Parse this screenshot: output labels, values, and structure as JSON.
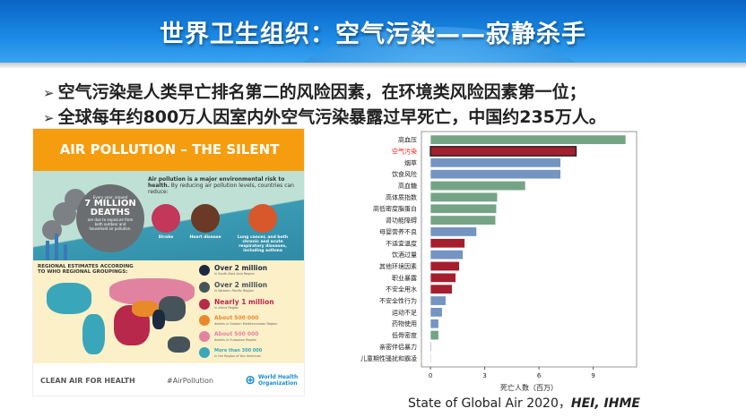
{
  "title": "世界卫生组织：空气污染——寂静杀手",
  "bullets": [
    "空气污染是人类早亡排名第二的风险因素，在环境类风险因素第一位；",
    "全球每年约800万人因室内外空气污染暴露过早死亡，中国约235万人。"
  ],
  "bullet_marker": "➢",
  "infographic": {
    "title": "AIR POLLUTION – THE SILENT KILLER",
    "circle_pre": "Every year, around",
    "circle_big1": "7 MILLION",
    "circle_big2": "DEATHS",
    "circle_post": "are due to exposure from both outdoor and household air pollution.",
    "intro_bold": "Air pollution is a major environmental risk to health.",
    "intro_rest": " By reducing air pollution levels, countries can reduce:",
    "organs": [
      "Stroke",
      "Heart disease",
      "Lung cancer, and both chronic and acute respiratory diseases, including asthma"
    ],
    "regional_title": "REGIONAL ESTIMATES ACCORDING TO WHO REGIONAL GROUPINGS:",
    "regions": [
      {
        "value": "Over 2 million",
        "sub": "in South-East Asia Region",
        "color": "#1c2a3e"
      },
      {
        "value": "Over 2 million",
        "sub": "in Western Pacific Region",
        "color": "#47535a"
      },
      {
        "value": "Nearly 1 million",
        "sub": "in Africa Region",
        "color": "#b8284a"
      },
      {
        "value": "About 500 000",
        "sub": "deaths in Eastern Mediterranean Region",
        "color": "#e98a2a"
      },
      {
        "value": "About 500 000",
        "sub": "deaths in European Region",
        "color": "#e183a0"
      },
      {
        "value": "More than 300 000",
        "sub": "in the Region of the Americas",
        "color": "#3aa6b9"
      }
    ],
    "footer_left": "CLEAN AIR FOR HEALTH",
    "footer_mid": "#AirPollution",
    "footer_logo": "World Health Organization"
  },
  "chart_data": {
    "type": "bar",
    "orientation": "horizontal",
    "categories": [
      "高血压",
      "空气污染",
      "烟草",
      "饮食风险",
      "高血糖",
      "高体质指数",
      "高低密度脂蛋白",
      "肾功能障碍",
      "母婴营养不良",
      "不适宜温度",
      "饮酒过量",
      "其他环境因素",
      "职业暴露",
      "不安全用水",
      "不安全性行为",
      "运动不足",
      "药物使用",
      "低骨密度",
      "亲密伴侣暴力",
      "儿童期性骚扰和霸凌"
    ],
    "values": [
      10.8,
      8.05,
      7.2,
      7.2,
      5.25,
      3.7,
      3.65,
      3.6,
      2.55,
      1.9,
      1.8,
      1.6,
      1.4,
      1.2,
      0.85,
      0.65,
      0.45,
      0.45,
      0.05,
      0.03
    ],
    "groups": [
      "metabolic",
      "environmental",
      "behavioral",
      "behavioral",
      "metabolic",
      "metabolic",
      "metabolic",
      "metabolic",
      "behavioral",
      "environmental",
      "behavioral",
      "environmental",
      "environmental",
      "environmental",
      "behavioral",
      "behavioral",
      "behavioral",
      "metabolic",
      "behavioral",
      "behavioral"
    ],
    "group_colors": {
      "metabolic": "#74a485",
      "environmental": "#a51e2e",
      "behavioral": "#7494c2"
    },
    "highlight": "空气污染",
    "highlight_color": "#ff1a1a",
    "xlabel": "死亡人数（百万）",
    "xticks": [
      0,
      3,
      6,
      9
    ],
    "xlim": [
      -0.5,
      11.4
    ]
  },
  "source": {
    "text": "State of Global Air 2020，",
    "org": "HEI, IHME"
  }
}
